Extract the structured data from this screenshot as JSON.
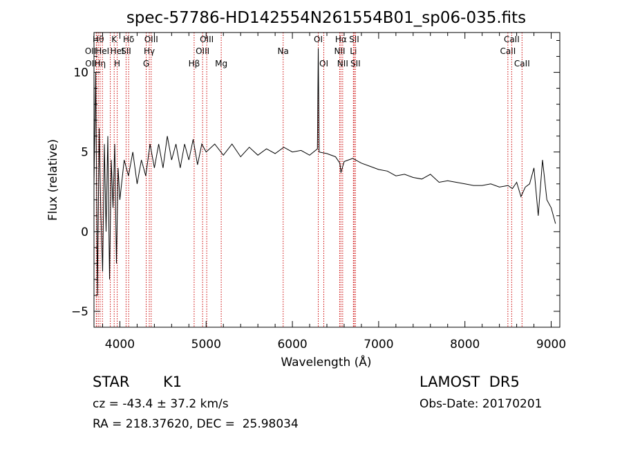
{
  "chart_data": {
    "type": "line",
    "title": "spec-57786-HD142554N261554B01_sp06-035.fits",
    "xlabel": "Wavelength (Å)",
    "ylabel": "Flux (relative)",
    "xlim": [
      3700,
      9100
    ],
    "ylim": [
      -6.0,
      12.5
    ],
    "xticks": [
      4000,
      5000,
      6000,
      7000,
      8000,
      9000
    ],
    "yticks": [
      -5,
      0,
      5,
      10
    ],
    "grid": false,
    "series": [
      {
        "color": "#000000",
        "x": [
          3700,
          3720,
          3740,
          3760,
          3780,
          3800,
          3820,
          3840,
          3860,
          3880,
          3900,
          3920,
          3940,
          3960,
          3980,
          4000,
          4050,
          4100,
          4150,
          4200,
          4250,
          4300,
          4350,
          4400,
          4450,
          4500,
          4550,
          4600,
          4650,
          4700,
          4750,
          4800,
          4850,
          4900,
          4950,
          5000,
          5100,
          5200,
          5300,
          5400,
          5500,
          5600,
          5700,
          5800,
          5900,
          6000,
          6100,
          6200,
          6290,
          6300,
          6310,
          6400,
          6500,
          6550,
          6563,
          6600,
          6700,
          6800,
          6900,
          7000,
          7100,
          7200,
          7300,
          7400,
          7500,
          7600,
          7700,
          7800,
          7900,
          8000,
          8100,
          8200,
          8300,
          8400,
          8500,
          8550,
          8600,
          8650,
          8700,
          8750,
          8800,
          8850,
          8900,
          8950,
          9000,
          9050
        ],
        "y": [
          3.0,
          10.0,
          -4.0,
          6.5,
          1.0,
          -2.5,
          5.5,
          0.0,
          6.0,
          -3.0,
          4.5,
          1.5,
          5.5,
          -2.0,
          4.0,
          2.0,
          4.5,
          3.5,
          5.0,
          3.0,
          4.5,
          3.5,
          5.5,
          4.0,
          5.5,
          4.0,
          6.0,
          4.5,
          5.5,
          4.0,
          5.5,
          4.5,
          5.8,
          4.2,
          5.5,
          5.0,
          5.5,
          4.8,
          5.5,
          4.7,
          5.3,
          4.8,
          5.2,
          4.9,
          5.3,
          5.0,
          5.1,
          4.8,
          5.2,
          11.5,
          5.0,
          4.9,
          4.7,
          4.3,
          3.7,
          4.4,
          4.6,
          4.3,
          4.1,
          3.9,
          3.8,
          3.5,
          3.6,
          3.4,
          3.3,
          3.6,
          3.1,
          3.2,
          3.1,
          3.0,
          2.9,
          2.9,
          3.0,
          2.8,
          2.9,
          2.7,
          3.1,
          2.2,
          2.8,
          3.0,
          4.0,
          1.0,
          4.5,
          2.0,
          1.5,
          0.5
        ]
      }
    ],
    "lines": [
      {
        "x": 3727,
        "label": "OII",
        "row": 2,
        "anchor": "end"
      },
      {
        "x": 3730,
        "label": "OII",
        "row": 3,
        "anchor": "end"
      },
      {
        "x": 3750,
        "label": "Hθ",
        "row": 1,
        "anchor": "middle"
      },
      {
        "x": 3771,
        "label": "Hη",
        "row": 3,
        "anchor": "middle"
      },
      {
        "x": 3798,
        "label": "HeI",
        "row": 2,
        "anchor": "middle"
      },
      {
        "x": 3889,
        "label": "HeI",
        "row": 2,
        "anchor": "start"
      },
      {
        "x": 3934,
        "label": "K",
        "row": 1,
        "anchor": "middle"
      },
      {
        "x": 3969,
        "label": "H",
        "row": 3,
        "anchor": "middle"
      },
      {
        "x": 4072,
        "label": "SII",
        "row": 2,
        "anchor": "middle"
      },
      {
        "x": 4102,
        "label": "Hδ",
        "row": 1,
        "anchor": "middle"
      },
      {
        "x": 4305,
        "label": "G",
        "row": 3,
        "anchor": "middle"
      },
      {
        "x": 4341,
        "label": "Hγ",
        "row": 2,
        "anchor": "middle"
      },
      {
        "x": 4363,
        "label": "OIII",
        "row": 1,
        "anchor": "middle"
      },
      {
        "x": 4861,
        "label": "Hβ",
        "row": 3,
        "anchor": "middle"
      },
      {
        "x": 4959,
        "label": "OIII",
        "row": 2,
        "anchor": "middle"
      },
      {
        "x": 5007,
        "label": "OIII",
        "row": 1,
        "anchor": "middle"
      },
      {
        "x": 5175,
        "label": "Mg",
        "row": 3,
        "anchor": "middle"
      },
      {
        "x": 5893,
        "label": "Na",
        "row": 2,
        "anchor": "middle"
      },
      {
        "x": 6300,
        "label": "OI",
        "row": 1,
        "anchor": "middle"
      },
      {
        "x": 6364,
        "label": "OI",
        "row": 3,
        "anchor": "middle"
      },
      {
        "x": 6548,
        "label": "NII",
        "row": 2,
        "anchor": "middle"
      },
      {
        "x": 6563,
        "label": "Hα",
        "row": 1,
        "anchor": "middle"
      },
      {
        "x": 6583,
        "label": "NII",
        "row": 3,
        "anchor": "middle"
      },
      {
        "x": 6707,
        "label": "Li",
        "row": 2,
        "anchor": "middle"
      },
      {
        "x": 6716,
        "label": "SII",
        "row": 1,
        "anchor": "middle"
      },
      {
        "x": 6731,
        "label": "SII",
        "row": 3,
        "anchor": "middle"
      },
      {
        "x": 8498,
        "label": "CaII",
        "row": 2,
        "anchor": "middle"
      },
      {
        "x": 8542,
        "label": "CaII",
        "row": 1,
        "anchor": "middle"
      },
      {
        "x": 8662,
        "label": "CaII",
        "row": 3,
        "anchor": "middle"
      }
    ],
    "line_color": "#cc0000"
  },
  "footer": {
    "object_type": "STAR",
    "subclass": "K1",
    "survey": "LAMOST  DR5",
    "redshift": "cz = -43.4 ± 37.2 km/s",
    "obs_date": "Obs-Date: 20170201",
    "coords": "RA = 218.37620, DEC =  25.98034"
  }
}
